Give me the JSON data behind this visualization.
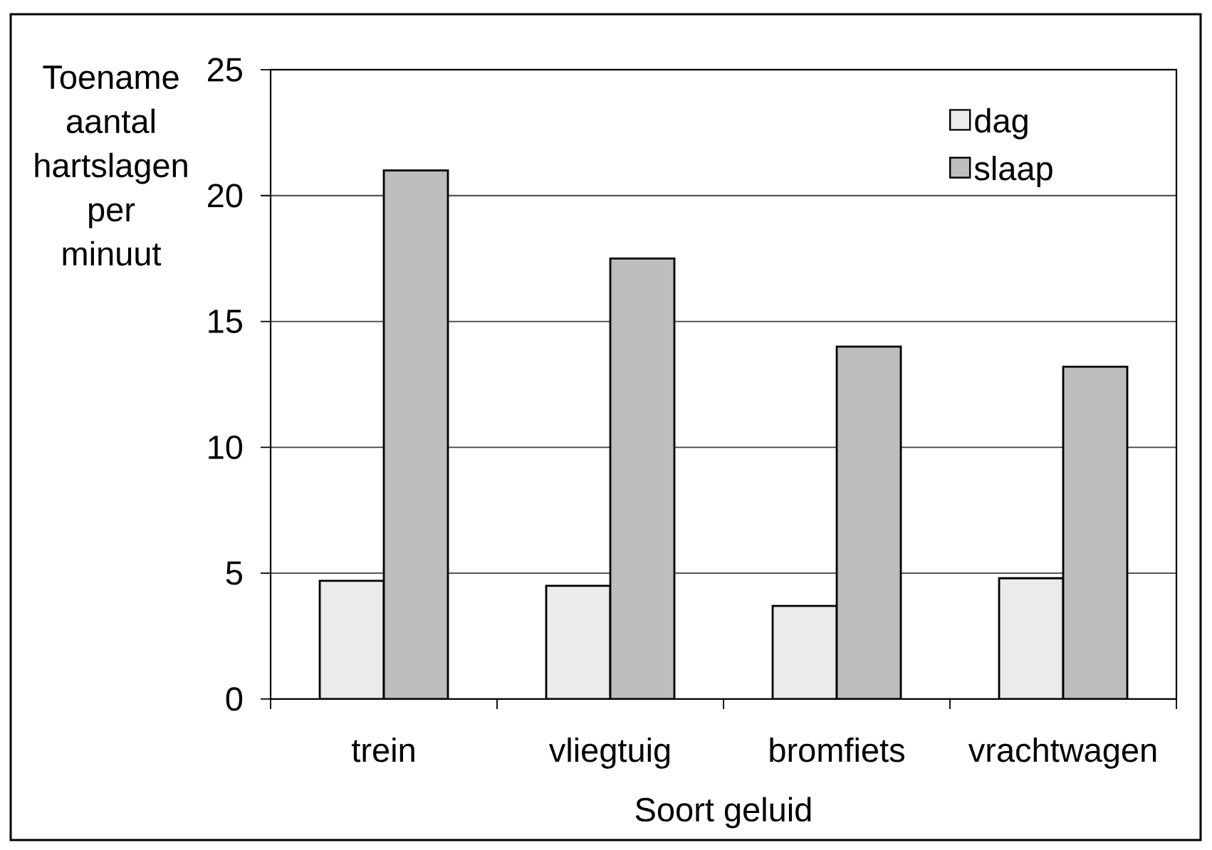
{
  "chart_data": {
    "type": "bar",
    "xlabel": "Soort geluid",
    "ylabel": "Toename aantal hartslagen per minuut",
    "categories": [
      "trein",
      "vliegtuig",
      "bromfiets",
      "vrachtwagen"
    ],
    "series": [
      {
        "name": "dag",
        "color": "#ebebeb",
        "values": [
          4.7,
          4.5,
          3.7,
          4.8
        ]
      },
      {
        "name": "slaap",
        "color": "#bdbdbd",
        "values": [
          21,
          17.5,
          14,
          13.2
        ]
      }
    ],
    "ylim": [
      0,
      25
    ],
    "yticks": [
      0,
      5,
      10,
      15,
      20,
      25
    ],
    "grid": "y",
    "legend": "top right"
  }
}
